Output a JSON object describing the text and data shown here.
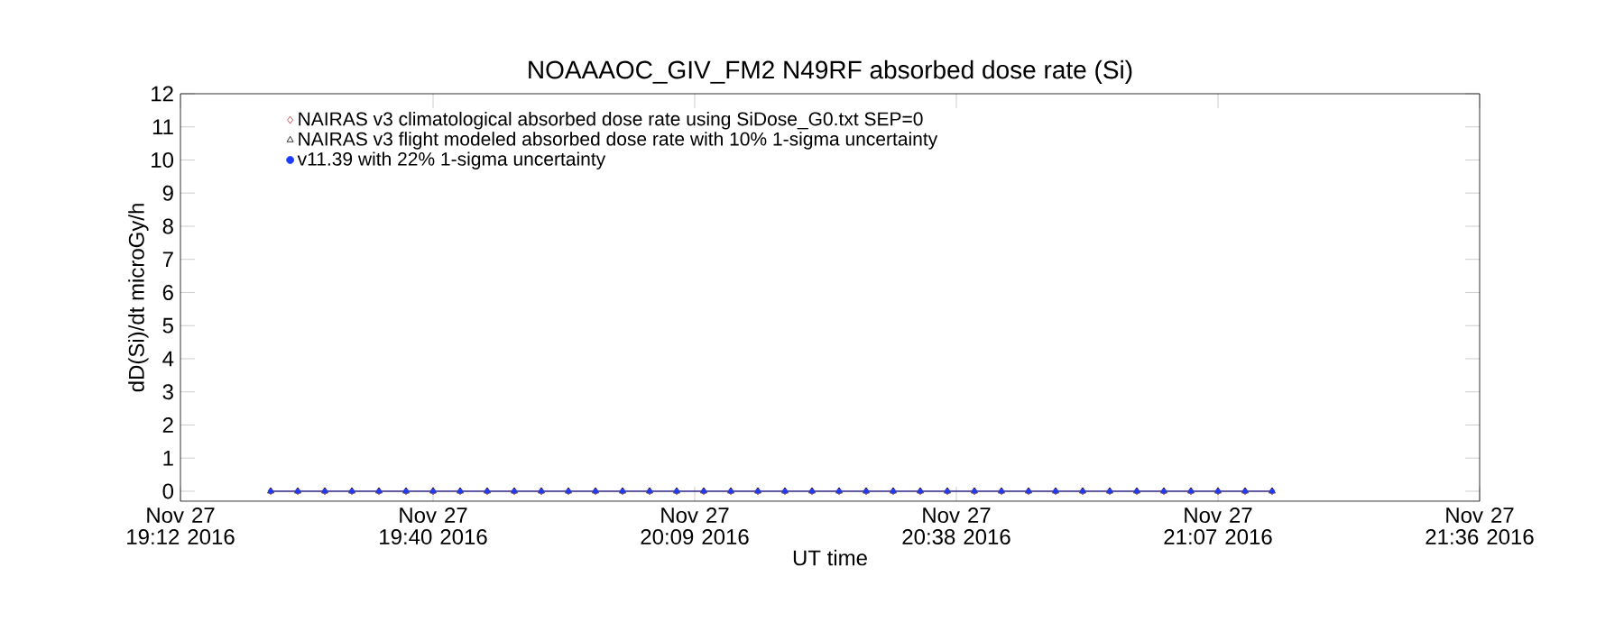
{
  "chart_data": {
    "type": "line",
    "title": "NOAAAOC_GIV_FM2   N49RF  absorbed dose rate (Si)",
    "xlabel": "UT time",
    "ylabel": "dD(Si)/dt microGy/h",
    "xlim": [
      "2016-11-27T19:12",
      "2016-11-27T21:36"
    ],
    "xticks": [
      {
        "value": "2016-11-27T19:12",
        "label": "Nov 27 19:12 2016"
      },
      {
        "value": "2016-11-27T19:40",
        "label": "Nov 27 19:40 2016"
      },
      {
        "value": "2016-11-27T20:09",
        "label": "Nov 27 20:09 2016"
      },
      {
        "value": "2016-11-27T20:38",
        "label": "Nov 27 20:38 2016"
      },
      {
        "value": "2016-11-27T21:07",
        "label": "Nov 27 21:07 2016"
      },
      {
        "value": "2016-11-27T21:36",
        "label": "Nov 27 21:36 2016"
      }
    ],
    "ylim": [
      -0.3,
      12
    ],
    "yticks": [
      0,
      1,
      2,
      3,
      4,
      5,
      6,
      7,
      8,
      9,
      10,
      11,
      12
    ],
    "grid": false,
    "legend": "top left",
    "x": [
      "2016-11-27T19:22",
      "2016-11-27T19:25",
      "2016-11-27T19:28",
      "2016-11-27T19:31",
      "2016-11-27T19:34",
      "2016-11-27T19:37",
      "2016-11-27T19:40",
      "2016-11-27T19:43",
      "2016-11-27T19:46",
      "2016-11-27T19:49",
      "2016-11-27T19:52",
      "2016-11-27T19:55",
      "2016-11-27T19:58",
      "2016-11-27T20:01",
      "2016-11-27T20:04",
      "2016-11-27T20:07",
      "2016-11-27T20:10",
      "2016-11-27T20:13",
      "2016-11-27T20:16",
      "2016-11-27T20:19",
      "2016-11-27T20:22",
      "2016-11-27T20:25",
      "2016-11-27T20:28",
      "2016-11-27T20:31",
      "2016-11-27T20:34",
      "2016-11-27T20:37",
      "2016-11-27T20:40",
      "2016-11-27T20:43",
      "2016-11-27T20:46",
      "2016-11-27T20:49",
      "2016-11-27T20:52",
      "2016-11-27T20:55",
      "2016-11-27T20:58",
      "2016-11-27T21:01",
      "2016-11-27T21:04",
      "2016-11-27T21:07",
      "2016-11-27T21:10",
      "2016-11-27T21:13"
    ],
    "series": [
      {
        "name": "NAIRAS v3 climatological absorbed dose rate using SiDose_G0.txt SEP=0",
        "color": "#cc3333",
        "marker": "diamond",
        "values": [
          0,
          0,
          0,
          0,
          0,
          0,
          0,
          0,
          0,
          0,
          0,
          0,
          0,
          0,
          0,
          0,
          0,
          0,
          0,
          0,
          0,
          0,
          0,
          0,
          0,
          0,
          0,
          0,
          0,
          0,
          0,
          0,
          0,
          0,
          0,
          0,
          0,
          0
        ]
      },
      {
        "name": "NAIRAS v3 flight modeled absorbed dose rate with 10% 1-sigma uncertainty",
        "color": "#000000",
        "marker": "triangle",
        "values": [
          0,
          0,
          0,
          0,
          0,
          0,
          0,
          0,
          0,
          0,
          0,
          0,
          0,
          0,
          0,
          0,
          0,
          0,
          0,
          0,
          0,
          0,
          0,
          0,
          0,
          0,
          0,
          0,
          0,
          0,
          0,
          0,
          0,
          0,
          0,
          0,
          0,
          0
        ]
      },
      {
        "name": "v11.39 with 22% 1-sigma uncertainty",
        "color": "#1a3cff",
        "marker": "circle",
        "values": [
          0,
          0,
          0,
          0,
          0,
          0,
          0,
          0,
          0,
          0,
          0,
          0,
          0,
          0,
          0,
          0,
          0,
          0,
          0,
          0,
          0,
          0,
          0,
          0,
          0,
          0,
          0,
          0,
          0,
          0,
          0,
          0,
          0,
          0,
          0,
          0,
          0,
          0
        ]
      }
    ]
  }
}
